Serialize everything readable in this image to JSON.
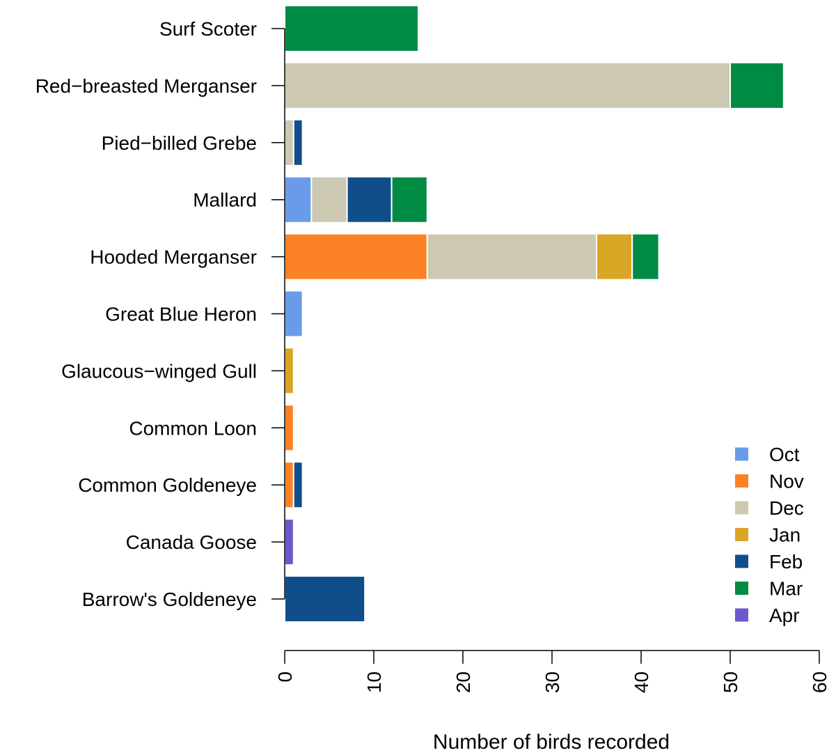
{
  "chart_data": {
    "type": "bar",
    "orientation": "horizontal",
    "stacked": true,
    "title": "",
    "xlabel": "Number of birds recorded",
    "ylabel": "",
    "xlim": [
      0,
      60
    ],
    "x_ticks": [
      0,
      10,
      20,
      30,
      40,
      50,
      60
    ],
    "grid": false,
    "legend_position": "bottom-right",
    "categories": [
      "Barrow's Goldeneye",
      "Canada Goose",
      "Common Goldeneye",
      "Common Loon",
      "Glaucous−winged Gull",
      "Great Blue Heron",
      "Hooded Merganser",
      "Mallard",
      "Pied−billed Grebe",
      "Red−breasted Merganser",
      "Surf Scoter"
    ],
    "series": [
      {
        "name": "Oct",
        "color": "#6a9bea",
        "values": [
          0,
          0,
          0,
          0,
          0,
          2,
          0,
          3,
          0,
          0,
          0
        ]
      },
      {
        "name": "Nov",
        "color": "#fd8225",
        "values": [
          0,
          0,
          1,
          1,
          0,
          0,
          16,
          0,
          0,
          0,
          0
        ]
      },
      {
        "name": "Dec",
        "color": "#cdc8b1",
        "values": [
          0,
          0,
          0,
          0,
          0,
          0,
          19,
          4,
          1,
          50,
          0
        ]
      },
      {
        "name": "Jan",
        "color": "#daa626",
        "values": [
          0,
          0,
          0,
          0,
          1,
          0,
          4,
          0,
          0,
          0,
          0
        ]
      },
      {
        "name": "Feb",
        "color": "#104e8b",
        "values": [
          9,
          0,
          1,
          0,
          0,
          0,
          0,
          5,
          1,
          0,
          0
        ]
      },
      {
        "name": "Mar",
        "color": "#008b45",
        "values": [
          0,
          0,
          0,
          0,
          0,
          0,
          3,
          4,
          0,
          6,
          15
        ]
      },
      {
        "name": "Apr",
        "color": "#6a5acd",
        "values": [
          0,
          1,
          0,
          0,
          0,
          0,
          0,
          0,
          0,
          0,
          0
        ]
      }
    ]
  }
}
